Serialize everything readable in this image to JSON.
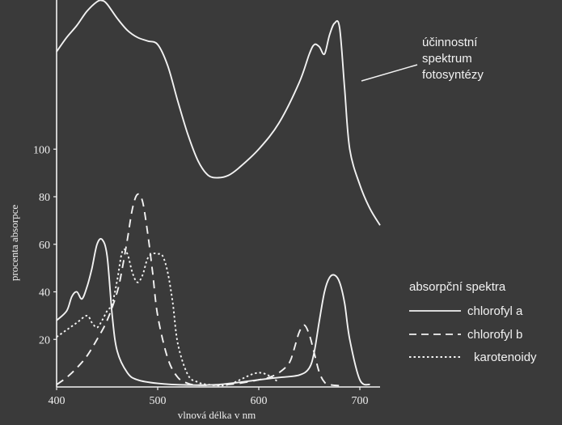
{
  "chart_data": {
    "type": "line",
    "xlabel": "vlnová délka v nm",
    "ylabel": "procenta absorpce",
    "xlim": [
      400,
      720
    ],
    "ylim": [
      0,
      160
    ],
    "x_ticks": [
      400,
      500,
      600,
      700
    ],
    "y_ticks": [
      20,
      40,
      60,
      80,
      100
    ],
    "grid": false,
    "colors": {
      "background": "#3a3a3a",
      "ink": "#f2f2f2"
    },
    "annotation": {
      "lines": [
        "účinnostní",
        "spektrum",
        "fotosyntézy"
      ]
    },
    "legend": {
      "title": "absorpční spektra",
      "position": "right"
    },
    "series": [
      {
        "name": "chlorofyl a",
        "style": "solid",
        "x": [
          400,
          410,
          415,
          420,
          425,
          430,
          435,
          440,
          445,
          450,
          455,
          460,
          470,
          480,
          500,
          530,
          560,
          600,
          620,
          640,
          650,
          655,
          660,
          665,
          670,
          675,
          680,
          685,
          690,
          700,
          710
        ],
        "y": [
          28,
          32,
          38,
          40,
          37,
          42,
          50,
          60,
          62,
          55,
          30,
          15,
          6,
          3,
          1.5,
          0.8,
          1,
          3,
          4,
          5,
          8,
          15,
          28,
          40,
          46,
          47,
          44,
          35,
          20,
          3,
          1
        ]
      },
      {
        "name": "chlorofyl b",
        "style": "dashed",
        "x": [
          400,
          410,
          420,
          430,
          440,
          450,
          460,
          465,
          470,
          475,
          480,
          485,
          490,
          495,
          500,
          510,
          520,
          530,
          540,
          560,
          580,
          600,
          610,
          620,
          630,
          635,
          640,
          645,
          650,
          655,
          660,
          665,
          670,
          680
        ],
        "y": [
          1,
          4,
          8,
          13,
          20,
          28,
          40,
          50,
          62,
          75,
          81,
          78,
          65,
          48,
          30,
          12,
          4,
          1.5,
          0.8,
          0.8,
          1.5,
          3,
          4,
          6,
          10,
          16,
          23,
          26,
          22,
          14,
          6,
          2,
          1,
          0.5
        ]
      },
      {
        "name": "karotenoidy",
        "style": "dotted",
        "x": [
          400,
          410,
          420,
          430,
          435,
          440,
          445,
          450,
          455,
          460,
          465,
          470,
          475,
          480,
          485,
          490,
          495,
          500,
          505,
          510,
          515,
          520,
          530,
          540,
          550,
          570,
          600,
          620
        ],
        "y": [
          21,
          24,
          27,
          30,
          27,
          25,
          28,
          32,
          35,
          45,
          57,
          56,
          48,
          44,
          47,
          54,
          56,
          56,
          55,
          48,
          35,
          18,
          5,
          2,
          1,
          1,
          6,
          2
        ]
      },
      {
        "name": "účinnostní spektrum fotosyntézy",
        "style": "solid",
        "x": [
          400,
          410,
          420,
          430,
          440,
          445,
          450,
          460,
          470,
          480,
          490,
          500,
          510,
          520,
          530,
          540,
          550,
          560,
          570,
          580,
          600,
          620,
          640,
          650,
          655,
          660,
          665,
          670,
          675,
          680,
          685,
          690,
          700,
          710,
          720
        ],
        "y": [
          141,
          147,
          152,
          158,
          162,
          162.5,
          161,
          155,
          150,
          147,
          145.5,
          144,
          135,
          120,
          106,
          95,
          89,
          88,
          89,
          92,
          100,
          111,
          128,
          140,
          144,
          143,
          140,
          148,
          153,
          151,
          125,
          100,
          85,
          75,
          68
        ]
      }
    ]
  }
}
